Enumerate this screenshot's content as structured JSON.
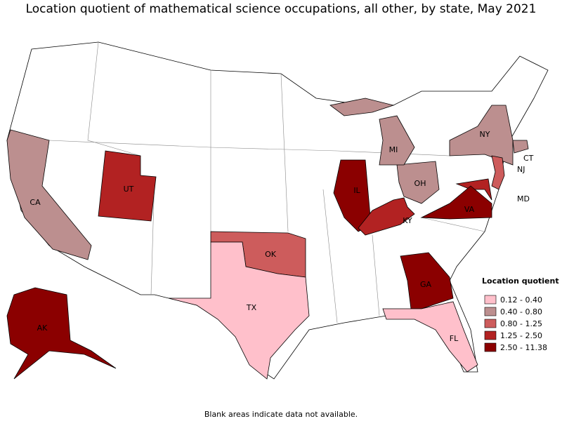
{
  "title": "Location quotient of mathematical science occupations, all other, by state, May 2021",
  "footnote": "Blank areas indicate data not available.",
  "legend": {
    "title": "Location quotient",
    "items": [
      {
        "label": "0.12 - 0.40",
        "color": "#ffc0cb"
      },
      {
        "label": "0.40 - 0.80",
        "color": "#bc8f8f"
      },
      {
        "label": "0.80 - 1.25",
        "color": "#cd5c5c"
      },
      {
        "label": "1.25 - 2.50",
        "color": "#b22222"
      },
      {
        "label": "2.50 - 11.38",
        "color": "#8b0000"
      }
    ]
  },
  "states": [
    {
      "label": "CA",
      "class": 1
    },
    {
      "label": "UT",
      "class": 3
    },
    {
      "label": "IL",
      "class": 4
    },
    {
      "label": "KY",
      "class": 3
    },
    {
      "label": "OH",
      "class": 1
    },
    {
      "label": "MI",
      "class": 1
    },
    {
      "label": "NY",
      "class": 1
    },
    {
      "label": "CT",
      "class": 1
    },
    {
      "label": "NJ",
      "class": 2
    },
    {
      "label": "MD",
      "class": 3
    },
    {
      "label": "VA",
      "class": 4
    },
    {
      "label": "OK",
      "class": 2
    },
    {
      "label": "TX",
      "class": 0
    },
    {
      "label": "GA",
      "class": 4
    },
    {
      "label": "FL",
      "class": 0
    },
    {
      "label": "AK",
      "class": 4
    }
  ]
}
